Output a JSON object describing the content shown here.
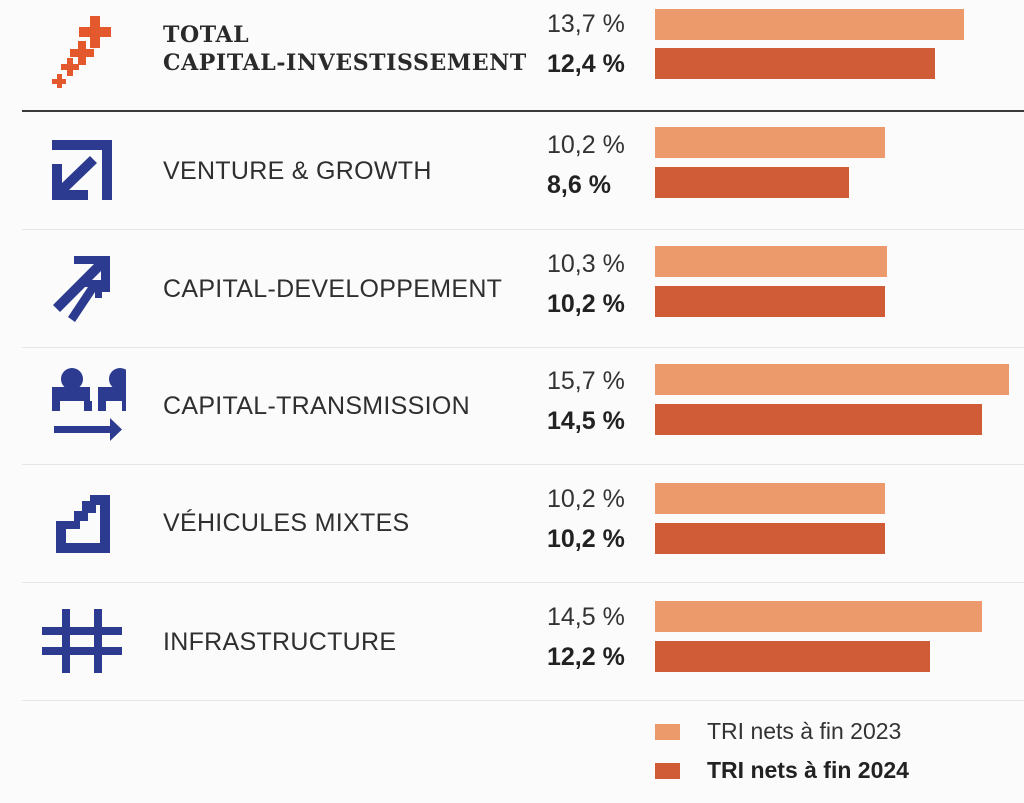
{
  "colors": {
    "y2023": "#ec9a6b",
    "y2024": "#d05c37",
    "icon_blue": "#2c3b8f",
    "total_icon": "#e3582c"
  },
  "chart_data": {
    "type": "bar",
    "orientation": "horizontal",
    "categories": [
      "TOTAL CAPITAL-INVESTISSEMENT",
      "VENTURE & GROWTH",
      "CAPITAL-DEVELOPPEMENT",
      "CAPITAL-TRANSMISSION",
      "VÉHICULES MIXTES",
      "INFRASTRUCTURE"
    ],
    "series": [
      {
        "name": "TRI nets à fin 2023",
        "values": [
          13.7,
          10.2,
          10.3,
          15.7,
          10.2,
          14.5
        ]
      },
      {
        "name": "TRI nets à fin 2024",
        "values": [
          12.4,
          8.6,
          10.2,
          14.5,
          10.2,
          12.2
        ]
      }
    ],
    "xlim": [
      0,
      15.7
    ],
    "legend_position": "bottom-right",
    "title": "",
    "xlabel": "",
    "ylabel": ""
  },
  "rows": [
    {
      "title_line1": "TOTAL",
      "title_line2": "CAPITAL-INVESTISSEMENT",
      "v2023": "13,7 %",
      "v2024": "12,4 %"
    },
    {
      "label": "VENTURE & GROWTH",
      "v2023": "10,2 %",
      "v2024": "8,6 %"
    },
    {
      "label": "CAPITAL-DEVELOPPEMENT",
      "v2023": "10,3 %",
      "v2024": "10,2 %"
    },
    {
      "label": "CAPITAL-TRANSMISSION",
      "v2023": "15,7 %",
      "v2024": "14,5 %"
    },
    {
      "label": "VÉHICULES MIXTES",
      "v2023": "10,2 %",
      "v2024": "10,2 %"
    },
    {
      "label": "INFRASTRUCTURE",
      "v2023": "14,5 %",
      "v2024": "12,2 %"
    }
  ],
  "legend": {
    "y2023": "TRI nets à fin 2023",
    "y2024": "TRI nets à fin 2024"
  }
}
